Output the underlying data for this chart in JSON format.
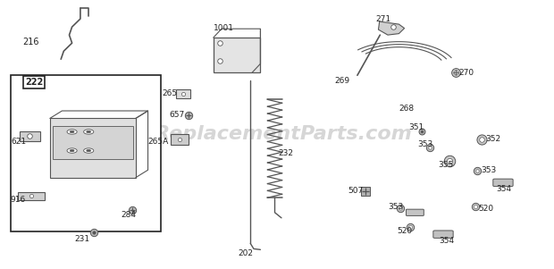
{
  "bg_color": "#ffffff",
  "watermark": "eReplacementParts.com",
  "watermark_color": "#bbbbbb",
  "watermark_alpha": 0.6,
  "gray": "#555555",
  "dark": "#222222"
}
